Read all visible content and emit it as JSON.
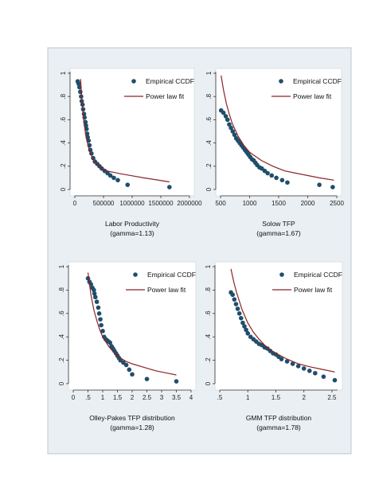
{
  "colors": {
    "panel_background": "#e9eff3",
    "figure_background": "#ffffff",
    "marker": "#1f4e6b",
    "fit_line": "#8b2323",
    "axis": "#333333"
  },
  "legend": {
    "empirical_label": "Empirical CCDF",
    "fit_label": "Power law fit"
  },
  "chart_data": [
    {
      "type": "scatter",
      "xlabel": "Labor Productivity",
      "subtitle": "(gamma=1.13)",
      "xlim": [
        0,
        2000000
      ],
      "ylim": [
        0,
        1
      ],
      "x_ticks": [
        0,
        500000,
        1000000,
        1500000,
        2000000
      ],
      "x_tick_labels": [
        "0",
        "500000",
        "1000000",
        "1500000",
        "2000000"
      ],
      "y_ticks": [
        0,
        0.2,
        0.4,
        0.6,
        0.8,
        1
      ],
      "y_tick_labels": [
        "0",
        ".2",
        ".4",
        ".6",
        ".8",
        "1"
      ],
      "legend_position": "top-right",
      "series": [
        {
          "name": "Empirical CCDF",
          "kind": "points",
          "x": [
            50000,
            65000,
            80000,
            95000,
            110000,
            120000,
            135000,
            145000,
            160000,
            170000,
            185000,
            195000,
            205000,
            215000,
            225000,
            240000,
            255000,
            270000,
            290000,
            320000,
            350000,
            390000,
            430000,
            470000,
            520000,
            570000,
            620000,
            680000,
            750000,
            920000,
            1650000
          ],
          "y": [
            0.93,
            0.91,
            0.88,
            0.84,
            0.8,
            0.76,
            0.73,
            0.69,
            0.65,
            0.62,
            0.58,
            0.55,
            0.52,
            0.48,
            0.45,
            0.42,
            0.38,
            0.34,
            0.31,
            0.27,
            0.24,
            0.22,
            0.2,
            0.18,
            0.16,
            0.14,
            0.12,
            0.1,
            0.08,
            0.04,
            0.02
          ]
        },
        {
          "name": "Power law fit",
          "kind": "line",
          "x": [
            100000,
            130000,
            160000,
            200000,
            250000,
            300000,
            350000,
            400000,
            500000,
            600000,
            700000,
            800000,
            1000000,
            1200000,
            1400000,
            1650000
          ],
          "y": [
            0.95,
            0.72,
            0.57,
            0.44,
            0.34,
            0.28,
            0.24,
            0.21,
            0.17,
            0.155,
            0.145,
            0.135,
            0.118,
            0.1,
            0.085,
            0.065
          ]
        }
      ]
    },
    {
      "type": "scatter",
      "xlabel": "Solow TFP",
      "subtitle": "(gamma=1.67)",
      "xlim": [
        500,
        2500
      ],
      "ylim": [
        0,
        1
      ],
      "x_ticks": [
        500,
        1000,
        1500,
        2000,
        2500
      ],
      "x_tick_labels": [
        "500",
        "1000",
        "1500",
        "2000",
        "2500"
      ],
      "y_ticks": [
        0,
        0.2,
        0.4,
        0.6,
        0.8,
        1
      ],
      "y_tick_labels": [
        "0",
        ".2",
        ".4",
        ".6",
        ".8",
        "1"
      ],
      "legend_position": "top-right",
      "series": [
        {
          "name": "Empirical CCDF",
          "kind": "points",
          "x": [
            510,
            550,
            590,
            620,
            650,
            680,
            710,
            740,
            770,
            800,
            830,
            860,
            890,
            920,
            950,
            980,
            1010,
            1040,
            1070,
            1100,
            1130,
            1170,
            1210,
            1260,
            1310,
            1380,
            1460,
            1560,
            1650,
            2200,
            2430
          ],
          "y": [
            0.68,
            0.66,
            0.63,
            0.6,
            0.56,
            0.53,
            0.5,
            0.47,
            0.44,
            0.42,
            0.4,
            0.38,
            0.36,
            0.34,
            0.32,
            0.3,
            0.28,
            0.26,
            0.25,
            0.23,
            0.21,
            0.19,
            0.18,
            0.16,
            0.14,
            0.12,
            0.1,
            0.08,
            0.06,
            0.04,
            0.02
          ]
        },
        {
          "name": "Power law fit",
          "kind": "line",
          "x": [
            510,
            550,
            600,
            650,
            700,
            800,
            900,
            1000,
            1200,
            1400,
            1600,
            1800,
            2000,
            2200,
            2450
          ],
          "y": [
            0.98,
            0.86,
            0.74,
            0.65,
            0.57,
            0.46,
            0.38,
            0.32,
            0.25,
            0.2,
            0.16,
            0.14,
            0.12,
            0.1,
            0.08
          ]
        }
      ]
    },
    {
      "type": "scatter",
      "xlabel": "Olley-Pakes TFP distribution",
      "subtitle": "(gamma=1.28)",
      "xlim": [
        0,
        4
      ],
      "ylim": [
        0,
        1
      ],
      "x_ticks": [
        0,
        0.5,
        1,
        1.5,
        2,
        2.5,
        3,
        3.5,
        4
      ],
      "x_tick_labels": [
        "0",
        ".5",
        "1",
        "1.5",
        "2",
        "2.5",
        "3",
        "3.5",
        "4"
      ],
      "y_ticks": [
        0,
        0.2,
        0.4,
        0.6,
        0.8,
        1
      ],
      "y_tick_labels": [
        "0",
        ".2",
        ".4",
        ".6",
        ".8",
        "1"
      ],
      "legend_position": "top-right",
      "series": [
        {
          "name": "Empirical CCDF",
          "kind": "points",
          "x": [
            0.5,
            0.55,
            0.6,
            0.65,
            0.7,
            0.72,
            0.75,
            0.8,
            0.85,
            0.88,
            0.92,
            0.95,
            1.0,
            1.05,
            1.1,
            1.15,
            1.2,
            1.25,
            1.3,
            1.35,
            1.4,
            1.45,
            1.5,
            1.55,
            1.6,
            1.7,
            1.8,
            1.9,
            2.0,
            2.5,
            3.5
          ],
          "y": [
            0.9,
            0.87,
            0.85,
            0.82,
            0.8,
            0.77,
            0.74,
            0.7,
            0.65,
            0.6,
            0.55,
            0.5,
            0.45,
            0.4,
            0.38,
            0.37,
            0.36,
            0.35,
            0.32,
            0.3,
            0.28,
            0.26,
            0.24,
            0.22,
            0.2,
            0.18,
            0.16,
            0.12,
            0.08,
            0.04,
            0.02
          ]
        },
        {
          "name": "Power law fit",
          "kind": "line",
          "x": [
            0.5,
            0.6,
            0.7,
            0.8,
            0.9,
            1.0,
            1.2,
            1.4,
            1.6,
            1.8,
            2.0,
            2.4,
            2.8,
            3.2,
            3.5
          ],
          "y": [
            0.95,
            0.76,
            0.63,
            0.54,
            0.46,
            0.4,
            0.32,
            0.26,
            0.22,
            0.19,
            0.17,
            0.14,
            0.11,
            0.09,
            0.075
          ]
        }
      ]
    },
    {
      "type": "scatter",
      "xlabel": "GMM TFP distribution",
      "subtitle": "(gamma=1.78)",
      "xlim": [
        0.5,
        2.6
      ],
      "ylim": [
        0,
        1
      ],
      "x_ticks": [
        0.5,
        1,
        1.5,
        2,
        2.5
      ],
      "x_tick_labels": [
        ".5",
        "1",
        "1.5",
        "2",
        "2.5"
      ],
      "y_ticks": [
        0,
        0.2,
        0.4,
        0.6,
        0.8,
        1
      ],
      "y_tick_labels": [
        "0",
        ".2",
        ".4",
        ".6",
        ".8",
        "1"
      ],
      "legend_position": "top-right",
      "series": [
        {
          "name": "Empirical CCDF",
          "kind": "points",
          "x": [
            0.7,
            0.73,
            0.76,
            0.79,
            0.82,
            0.85,
            0.88,
            0.91,
            0.94,
            0.97,
            1.0,
            1.05,
            1.1,
            1.15,
            1.2,
            1.25,
            1.3,
            1.35,
            1.4,
            1.45,
            1.5,
            1.55,
            1.6,
            1.7,
            1.8,
            1.9,
            2.0,
            2.1,
            2.2,
            2.35,
            2.55
          ],
          "y": [
            0.78,
            0.76,
            0.72,
            0.68,
            0.64,
            0.6,
            0.56,
            0.52,
            0.49,
            0.46,
            0.43,
            0.4,
            0.38,
            0.36,
            0.34,
            0.33,
            0.31,
            0.3,
            0.28,
            0.26,
            0.25,
            0.23,
            0.21,
            0.19,
            0.17,
            0.15,
            0.13,
            0.11,
            0.09,
            0.06,
            0.03
          ]
        },
        {
          "name": "Power law fit",
          "kind": "line",
          "x": [
            0.7,
            0.75,
            0.8,
            0.9,
            1.0,
            1.1,
            1.2,
            1.3,
            1.4,
            1.5,
            1.7,
            1.9,
            2.1,
            2.3,
            2.55
          ],
          "y": [
            0.98,
            0.87,
            0.78,
            0.63,
            0.52,
            0.44,
            0.38,
            0.33,
            0.29,
            0.26,
            0.21,
            0.17,
            0.145,
            0.125,
            0.1
          ]
        }
      ]
    }
  ]
}
